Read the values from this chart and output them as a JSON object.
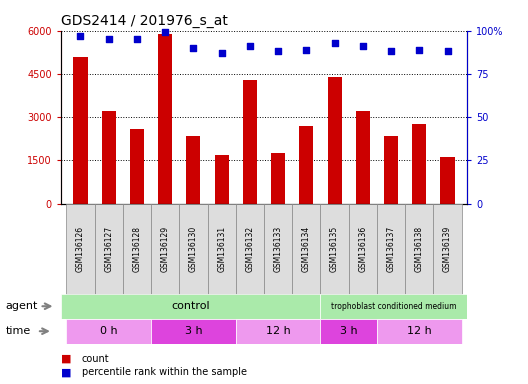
{
  "title": "GDS2414 / 201976_s_at",
  "samples": [
    "GSM136126",
    "GSM136127",
    "GSM136128",
    "GSM136129",
    "GSM136130",
    "GSM136131",
    "GSM136132",
    "GSM136133",
    "GSM136134",
    "GSM136135",
    "GSM136136",
    "GSM136137",
    "GSM136138",
    "GSM136139"
  ],
  "counts": [
    5100,
    3200,
    2600,
    5900,
    2350,
    1700,
    4300,
    1750,
    2700,
    4400,
    3200,
    2350,
    2750,
    1600
  ],
  "percentile_ranks": [
    97,
    95,
    95,
    99,
    90,
    87,
    91,
    88,
    89,
    93,
    91,
    88,
    89,
    88
  ],
  "bar_color": "#cc0000",
  "dot_color": "#0000cc",
  "ylim_left": [
    0,
    6000
  ],
  "ylim_right": [
    0,
    100
  ],
  "yticks_left": [
    0,
    1500,
    3000,
    4500,
    6000
  ],
  "yticks_right": [
    0,
    25,
    50,
    75,
    100
  ],
  "bar_width": 0.5,
  "xlim": [
    -0.7,
    13.7
  ],
  "sample_box_color": "#dddddd",
  "sample_box_edge": "#888888",
  "agent_control_color": "#aaeaaa",
  "agent_tropho_color": "#aaeaaa",
  "time_colors": [
    "#ee99ee",
    "#dd44dd",
    "#ee99ee",
    "#dd44dd",
    "#ee99ee"
  ],
  "time_groups": [
    {
      "label": "0 h",
      "start": -0.5,
      "end": 2.5
    },
    {
      "label": "3 h",
      "start": 2.5,
      "end": 5.5
    },
    {
      "label": "12 h",
      "start": 5.5,
      "end": 8.5
    },
    {
      "label": "3 h",
      "start": 8.5,
      "end": 10.5
    },
    {
      "label": "12 h",
      "start": 10.5,
      "end": 13.5
    }
  ],
  "control_end": 8.5,
  "legend_count_color": "#cc0000",
  "legend_dot_color": "#0000cc",
  "grid_color": "#000000",
  "title_fontsize": 10,
  "tick_fontsize": 7,
  "label_fontsize": 8,
  "legend_fontsize": 7
}
